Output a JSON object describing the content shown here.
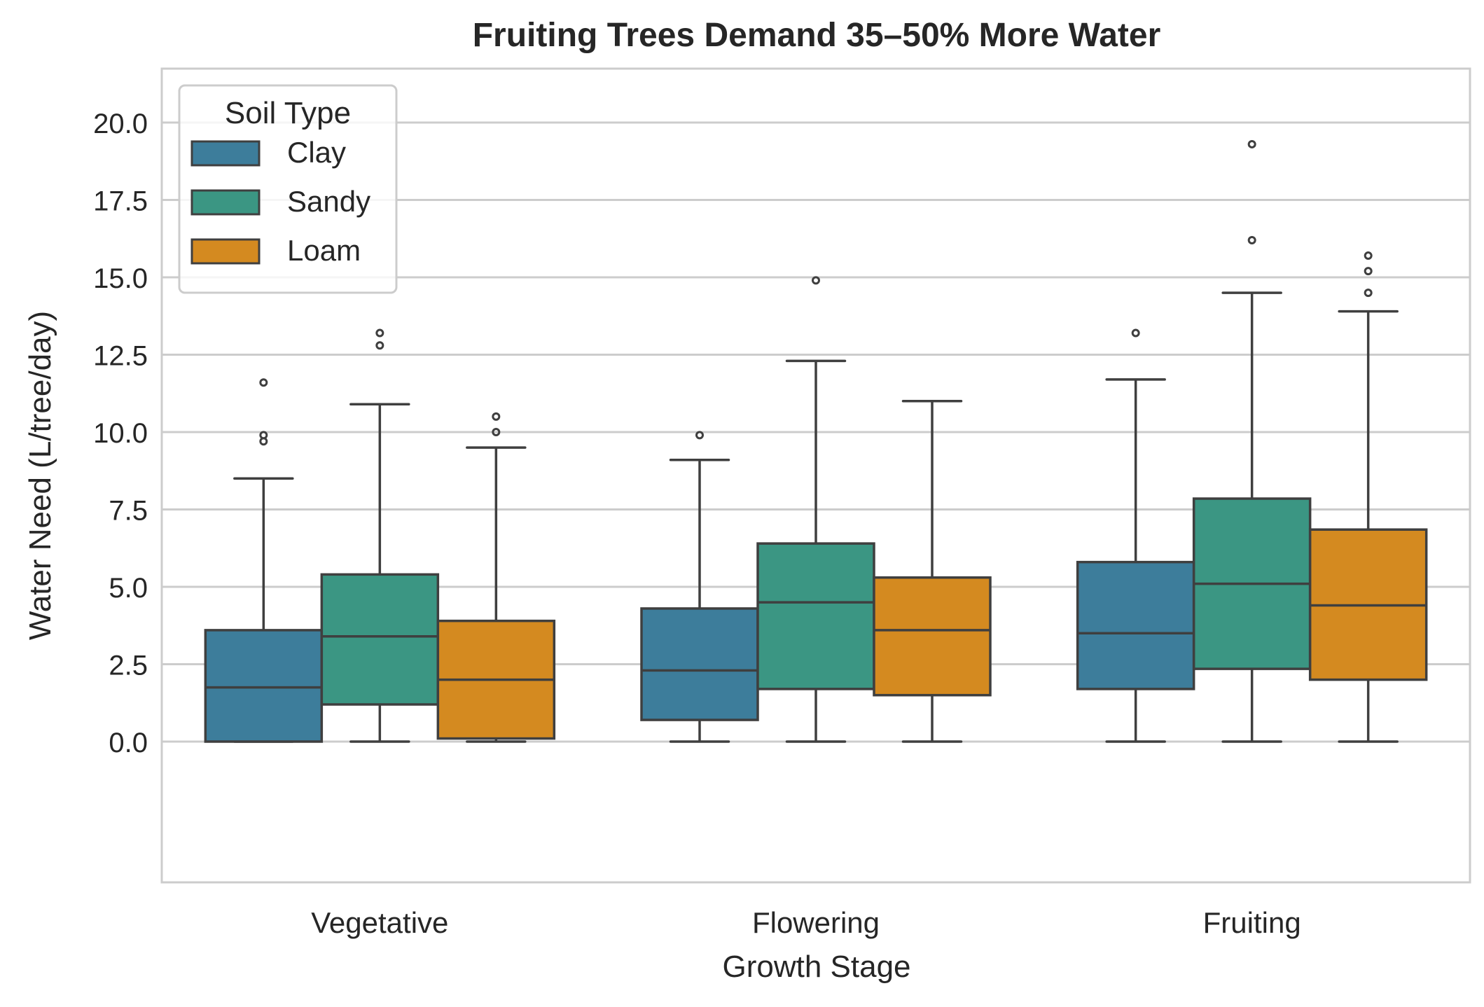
{
  "chart_data": {
    "type": "box",
    "title": "Fruiting Trees Demand 35–50% More Water",
    "xlabel": "Growth Stage",
    "ylabel": "Water Need (L/tree/day)",
    "ylim": [
      -1.0,
      20.3
    ],
    "yticks": [
      "0.0",
      "2.5",
      "5.0",
      "7.5",
      "10.0",
      "12.5",
      "15.0",
      "17.5",
      "20.0"
    ],
    "ytick_values": [
      0,
      2.5,
      5,
      7.5,
      10,
      12.5,
      15,
      17.5,
      20
    ],
    "categories": [
      "Vegetative",
      "Flowering",
      "Fruiting"
    ],
    "grid": true,
    "legend": {
      "title": "Soil Type",
      "placement": "top-left"
    },
    "series": [
      {
        "name": "Clay",
        "color": "#3d7d9b",
        "boxes": [
          {
            "whisker_low": 0.0,
            "q1": 0.0,
            "median": 1.75,
            "q3": 3.6,
            "whisker_high": 8.5,
            "outliers": [
              9.7,
              9.9,
              11.6
            ]
          },
          {
            "whisker_low": 0.0,
            "q1": 0.7,
            "median": 2.3,
            "q3": 4.3,
            "whisker_high": 9.1,
            "outliers": [
              9.9
            ]
          },
          {
            "whisker_low": 0.0,
            "q1": 1.7,
            "median": 3.5,
            "q3": 5.8,
            "whisker_high": 11.7,
            "outliers": [
              13.2
            ]
          }
        ]
      },
      {
        "name": "Sandy",
        "color": "#3b9683",
        "boxes": [
          {
            "whisker_low": 0.0,
            "q1": 1.2,
            "median": 3.4,
            "q3": 5.4,
            "whisker_high": 10.9,
            "outliers": [
              12.8,
              13.2
            ]
          },
          {
            "whisker_low": 0.0,
            "q1": 1.7,
            "median": 4.5,
            "q3": 6.4,
            "whisker_high": 12.3,
            "outliers": [
              14.9
            ]
          },
          {
            "whisker_low": 0.0,
            "q1": 2.35,
            "median": 5.1,
            "q3": 7.85,
            "whisker_high": 14.5,
            "outliers": [
              16.2,
              19.3
            ]
          }
        ]
      },
      {
        "name": "Loam",
        "color": "#d48a20",
        "boxes": [
          {
            "whisker_low": 0.0,
            "q1": 0.1,
            "median": 2.0,
            "q3": 3.9,
            "whisker_high": 9.5,
            "outliers": [
              10.0,
              10.5
            ]
          },
          {
            "whisker_low": 0.0,
            "q1": 1.5,
            "median": 3.6,
            "q3": 5.3,
            "whisker_high": 11.0,
            "outliers": []
          },
          {
            "whisker_low": 0.0,
            "q1": 2.0,
            "median": 4.4,
            "q3": 6.85,
            "whisker_high": 13.9,
            "outliers": [
              14.5,
              15.2,
              15.7
            ]
          }
        ]
      }
    ]
  }
}
